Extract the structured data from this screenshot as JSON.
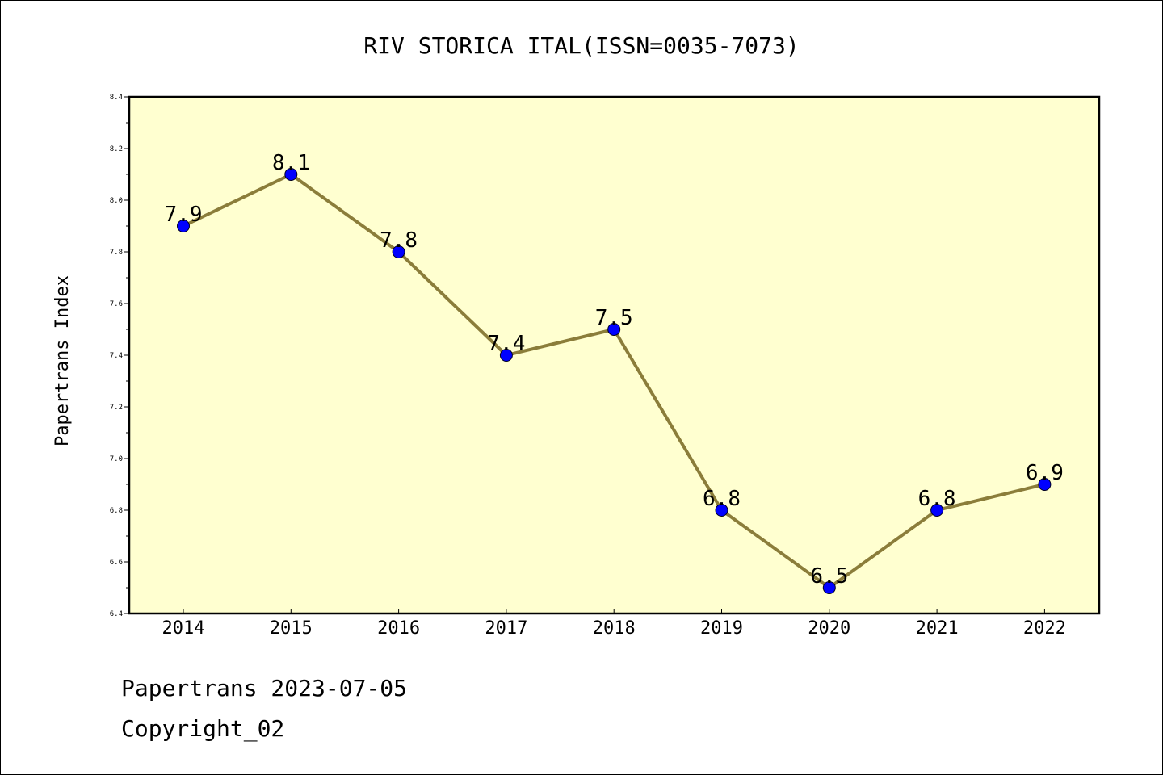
{
  "chart_data": {
    "type": "line",
    "title": "RIV STORICA ITAL(ISSN=0035-7073)",
    "ylabel": "Papertrans Index",
    "xlabel": "",
    "categories": [
      "2014",
      "2015",
      "2016",
      "2017",
      "2018",
      "2019",
      "2020",
      "2021",
      "2022"
    ],
    "values": [
      7.9,
      8.1,
      7.8,
      7.4,
      7.5,
      6.8,
      6.5,
      6.8,
      6.9
    ],
    "data_labels": [
      "7.9",
      "8.1",
      "7.8",
      "7.4",
      "7.5",
      "6.8",
      "6.5",
      "6.8",
      "6.9"
    ],
    "ylim": [
      6.4,
      8.4
    ],
    "y_ticks": [
      "6.4",
      "6.6",
      "6.8",
      "7.0",
      "7.2",
      "7.4",
      "7.6",
      "7.8",
      "8.0",
      "8.2",
      "8.4"
    ],
    "grid": false,
    "colors": {
      "plot_background": "#ffffd0",
      "line": "#8b7d3a",
      "marker": "#0000ff"
    }
  },
  "footer": {
    "line1": "Papertrans 2023-07-05",
    "line2": "Copyright_02"
  }
}
